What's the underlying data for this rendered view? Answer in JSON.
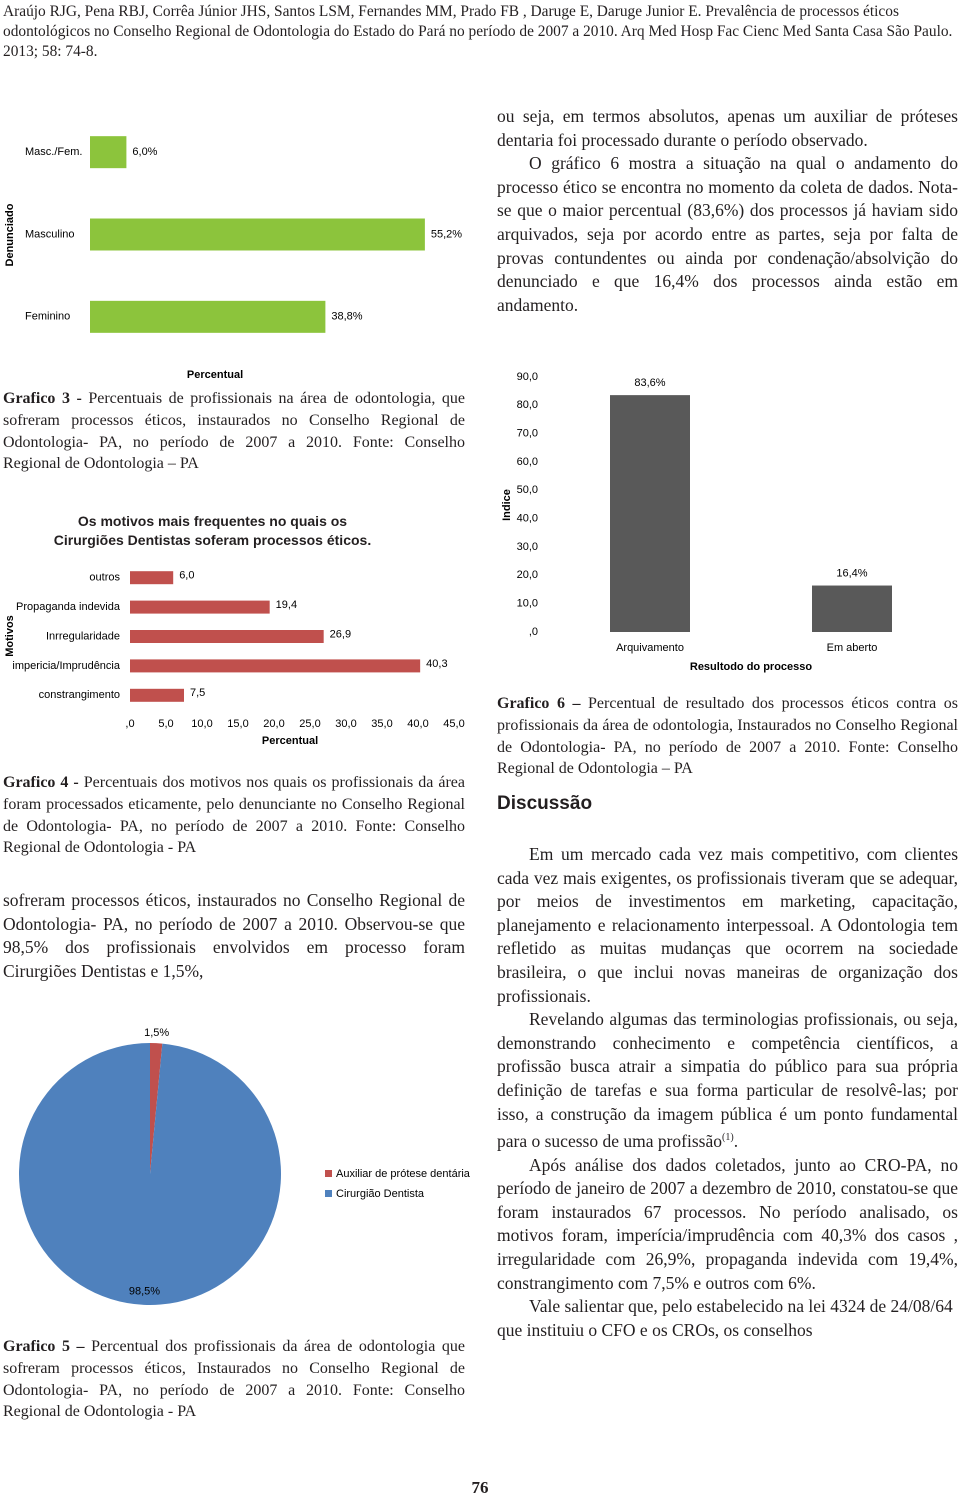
{
  "header": "Araújo RJG, Pena RBJ, Corrêa Júnior JHS, Santos LSM, Fernandes MM, Prado FB , Daruge E, Daruge Junior E. Prevalência de processos éticos odontológicos no Conselho Regional de Odontologia do Estado do Pará no período de 2007 a 2010. Arq Med Hosp Fac Cienc Med Santa Casa São Paulo. 2013; 58: 74-8.",
  "right_top": [
    "ou seja, em termos absolutos, apenas um auxiliar de próteses dentaria foi processado durante o período observado.",
    "O gráfico 6 mostra a situação na qual o andamento do processo ético se encontra no momento da coleta de dados. Nota-se que o maior percentual (83,6%) dos processos já haviam sido arquivados, seja por acordo entre as partes, seja por falta de provas contundentes ou ainda por condenação/absolvição do denunciado e que 16,4% dos processos ainda estão em andamento."
  ],
  "captions": [
    {
      "label": "Grafico 3 -",
      "text": " Percentuais de profissionais na área de odontologia, que sofreram processos éticos, instaurados no Conselho Regional de Odontologia- PA, no período de 2007 a 2010. Fonte: Conselho Regional de Odontologia – PA"
    },
    {
      "label": "Grafico 4 -",
      "text": " Percentuais dos motivos nos quais os profissionais da área foram processados eticamente, pelo denunciante no Conselho Regional de Odontologia- PA, no período de 2007 a 2010. Fonte: Conselho Regional de Odontologia - PA"
    },
    {
      "label": "Grafico 5 –",
      "text": " Percentual dos profissionais da área de odontologia que sofreram processos éticos, Instaurados no Conselho Regional de Odontologia- PA, no período de 2007 a 2010. Fonte: Conselho Regional de Odontologia - PA"
    },
    {
      "label": "Grafico 6 –",
      "text": " Percentual de resultado dos processos éticos contra os profissionais da área de odontologia, Instaurados no Conselho Regional de Odontologia- PA, no período de 2007 a 2010. Fonte: Conselho Regional de Odontologia – PA"
    }
  ],
  "left_paragraph": "sofreram processos éticos, instaurados no Conselho Regional de Odontologia- PA, no período de 2007 a 2010. Observou-se que 98,5% dos profissionais envolvidos em processo foram Cirurgiões Dentistas e 1,5%,",
  "discussion": {
    "heading": "Discussão",
    "paragraphs": [
      {
        "text": "Em um mercado cada vez mais competitivo, com clientes cada vez mais exigentes, os profissionais tiveram que se adequar, por meios de investimentos em marketing, capacitação, planejamento e relacionamento interpessoal. A Odontologia tem refletido as muitas mudanças que ocorrem na sociedade brasileira, o que inclui novas maneiras de organização dos profissionais."
      },
      {
        "text": "Revelando algumas das terminologias profissionais, ou seja, demonstrando conhecimento e competência científicos, a profissão busca atrair a simpatia do público para sua própria definição de tarefas e sua forma particular de resolvê-las; por isso, a construção da imagem pública é um ponto fundamental para o sucesso de uma profissão",
        "ref": "(1)",
        "tail": "."
      },
      {
        "text": "Após análise dos dados coletados, junto ao CRO-PA, no período de janeiro de 2007 a dezembro de 2010, constatou-se que foram instaurados 67 processos. No período analisado, os motivos foram, imperícia/imprudência com 40,3% dos casos , irregularidade com 26,9%, propaganda indevida com 19,4%, constrangimento com 7,5% e outros com 6%."
      },
      {
        "text": "Vale salientar que, pelo estabelecido na lei 4324 de 24/08/64 que instituiu o CFO e os CROs, os conselhos"
      }
    ]
  },
  "page_number": "76",
  "chart_data": [
    {
      "type": "bar",
      "orientation": "horizontal",
      "categories": [
        "Masc./Fem.",
        "Masculino",
        "Feminino"
      ],
      "values": [
        6.0,
        55.2,
        38.8
      ],
      "value_labels": [
        "6,0%",
        "55,2%",
        "38,8%"
      ],
      "color": "#8cc43c",
      "xlabel": "Percentual",
      "ylabel": "Denunciado",
      "xlim": [
        0,
        60
      ]
    },
    {
      "type": "bar",
      "orientation": "horizontal",
      "title": "Os motivos mais frequentes no quais os Cirurgiões Dentistas soferam processos éticos.",
      "categories": [
        "outros",
        "Propaganda indevida",
        "Inrregularidade",
        "impericia/Imprudência",
        "constrangimento"
      ],
      "values": [
        6.0,
        19.4,
        26.9,
        40.3,
        7.5
      ],
      "value_labels": [
        "6,0",
        "19,4",
        "26,9",
        "40,3",
        "7,5"
      ],
      "color": "#c0504d",
      "xlabel": "Percentual",
      "ylabel": "Motivos",
      "xlim": [
        0,
        45
      ],
      "xticks": [
        {
          "value": 0,
          "label": ",0"
        },
        {
          "value": 5,
          "label": "5,0"
        },
        {
          "value": 10,
          "label": "10,0"
        },
        {
          "value": 15,
          "label": "15,0"
        },
        {
          "value": 20,
          "label": "20,0"
        },
        {
          "value": 25,
          "label": "25,0"
        },
        {
          "value": 30,
          "label": "30,0"
        },
        {
          "value": 35,
          "label": "35,0"
        },
        {
          "value": 40,
          "label": "40,0"
        },
        {
          "value": 45,
          "label": "45,0"
        }
      ]
    },
    {
      "type": "pie",
      "categories": [
        "Auxiliar de prótese dentária",
        "Cirurgião Dentista"
      ],
      "values": [
        1.5,
        98.5
      ],
      "value_labels": [
        "1,5%",
        "98,5%"
      ],
      "colors": [
        "#c0504d",
        "#4f81bd"
      ]
    },
    {
      "type": "bar",
      "orientation": "vertical",
      "categories": [
        "Arquivamento",
        "Em aberto"
      ],
      "values": [
        83.6,
        16.4
      ],
      "value_labels": [
        "83,6%",
        "16,4%"
      ],
      "color": "#595959",
      "xlabel": "Resultodo do processo",
      "ylabel": "Indice",
      "ylim": [
        0,
        90
      ],
      "yticks": [
        {
          "value": 0,
          "label": ",0"
        },
        {
          "value": 10,
          "label": "10,0"
        },
        {
          "value": 20,
          "label": "20,0"
        },
        {
          "value": 30,
          "label": "30,0"
        },
        {
          "value": 40,
          "label": "40,0"
        },
        {
          "value": 50,
          "label": "50,0"
        },
        {
          "value": 60,
          "label": "60,0"
        },
        {
          "value": 70,
          "label": "70,0"
        },
        {
          "value": 80,
          "label": "80,0"
        },
        {
          "value": 90,
          "label": "90,0"
        }
      ]
    }
  ]
}
